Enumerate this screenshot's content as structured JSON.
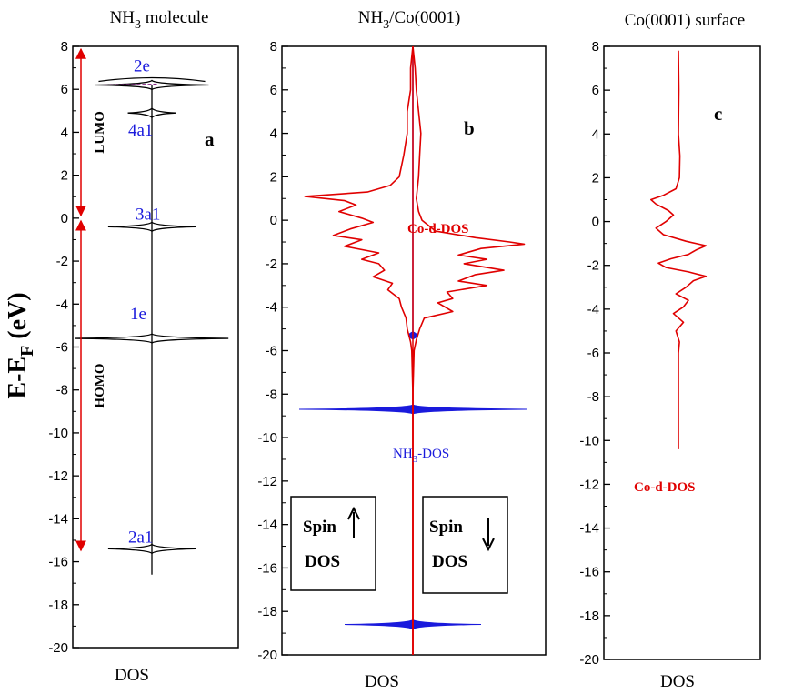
{
  "chart_data": [
    {
      "type": "line",
      "title_main": "NH",
      "title_sub": "3",
      "title_rest": " molecule",
      "panel_label": "a",
      "xlabel": "DOS",
      "ylabel_main": "E-E",
      "ylabel_sub": "F",
      "ylabel_unit": " (eV)",
      "ylim": [
        -20,
        8
      ],
      "yticks": [
        -20,
        -18,
        -16,
        -14,
        -12,
        -10,
        -8,
        -6,
        -4,
        -2,
        0,
        2,
        4,
        6,
        8
      ],
      "grid": false,
      "orbitals": [
        {
          "name": "2e",
          "energy": 6.2,
          "width": 0.7
        },
        {
          "name": "4a1",
          "energy": 4.9,
          "width": 0.2
        },
        {
          "name": "3a1",
          "energy": -0.4,
          "width": 0.5
        },
        {
          "name": "1e",
          "energy": -5.6,
          "width": 1.0
        },
        {
          "name": "2a1",
          "energy": -15.4,
          "width": 0.5
        }
      ],
      "regions": [
        {
          "name": "LUMO",
          "from": 0.0,
          "to": 8.0
        },
        {
          "name": "HOMO",
          "from": -15.6,
          "to": 0.0
        }
      ],
      "colors": {
        "curve": "#000000",
        "orbital_text": "#1a1adc",
        "arrow": "#e00000"
      }
    },
    {
      "type": "line",
      "title_main": "NH",
      "title_sub": "3",
      "title_rest": "/Co(0001)",
      "panel_label": "b",
      "xlabel": "DOS",
      "ylim": [
        -20,
        8
      ],
      "yticks": [
        -20,
        -18,
        -16,
        -14,
        -12,
        -10,
        -8,
        -6,
        -4,
        -2,
        0,
        2,
        4,
        6,
        8
      ],
      "grid": false,
      "series": [
        {
          "name": "Co-d-DOS",
          "color": "#e00000",
          "left_spin_up": [
            [
              8.0,
              0.0
            ],
            [
              7.0,
              0.02
            ],
            [
              6.0,
              0.02
            ],
            [
              5.0,
              0.05
            ],
            [
              4.0,
              0.05
            ],
            [
              3.0,
              0.08
            ],
            [
              2.5,
              0.1
            ],
            [
              2.0,
              0.12
            ],
            [
              1.6,
              0.2
            ],
            [
              1.3,
              0.4
            ],
            [
              1.1,
              0.95
            ],
            [
              0.9,
              0.6
            ],
            [
              0.7,
              0.5
            ],
            [
              0.4,
              0.65
            ],
            [
              0.1,
              0.45
            ],
            [
              -0.1,
              0.35
            ],
            [
              -0.4,
              0.55
            ],
            [
              -0.7,
              0.7
            ],
            [
              -0.9,
              0.45
            ],
            [
              -1.2,
              0.6
            ],
            [
              -1.5,
              0.3
            ],
            [
              -1.8,
              0.45
            ],
            [
              -2.0,
              0.3
            ],
            [
              -2.3,
              0.25
            ],
            [
              -2.6,
              0.35
            ],
            [
              -2.9,
              0.18
            ],
            [
              -3.2,
              0.22
            ],
            [
              -3.6,
              0.12
            ],
            [
              -4.0,
              0.1
            ],
            [
              -4.5,
              0.06
            ],
            [
              -5.0,
              0.05
            ],
            [
              -5.6,
              0.02
            ],
            [
              -6.0,
              0.01
            ],
            [
              -8.0,
              0.0
            ],
            [
              -20.0,
              0.0
            ]
          ],
          "right_spin_down": [
            [
              8.0,
              0.0
            ],
            [
              7.0,
              0.02
            ],
            [
              6.0,
              0.03
            ],
            [
              5.0,
              0.05
            ],
            [
              4.0,
              0.07
            ],
            [
              3.0,
              0.06
            ],
            [
              2.0,
              0.05
            ],
            [
              1.0,
              0.03
            ],
            [
              0.4,
              0.05
            ],
            [
              0.0,
              0.08
            ],
            [
              -0.5,
              0.2
            ],
            [
              -0.8,
              0.55
            ],
            [
              -1.0,
              0.85
            ],
            [
              -1.1,
              0.98
            ],
            [
              -1.3,
              0.6
            ],
            [
              -1.6,
              0.4
            ],
            [
              -1.8,
              0.65
            ],
            [
              -2.0,
              0.45
            ],
            [
              -2.3,
              0.8
            ],
            [
              -2.5,
              0.55
            ],
            [
              -2.8,
              0.4
            ],
            [
              -3.0,
              0.65
            ],
            [
              -3.3,
              0.3
            ],
            [
              -3.6,
              0.35
            ],
            [
              -3.8,
              0.22
            ],
            [
              -4.2,
              0.35
            ],
            [
              -4.5,
              0.1
            ],
            [
              -5.0,
              0.06
            ],
            [
              -5.5,
              0.03
            ],
            [
              -6.0,
              0.01
            ],
            [
              -8.0,
              0.0
            ],
            [
              -20.0,
              0.0
            ]
          ]
        },
        {
          "name": "NH3-DOS",
          "color": "#1a1adc",
          "peaks": [
            {
              "energy": -8.7,
              "width": 1.0
            },
            {
              "energy": -18.6,
              "width": 0.6
            },
            {
              "energy": -5.3,
              "width": 0.03
            }
          ]
        }
      ],
      "annotations": {
        "co_label": "Co-d-DOS",
        "nh3_main": "NH",
        "nh3_sub": "3",
        "nh3_rest": "-DOS",
        "spin_up_word": "Spin",
        "spin_up_dos": "DOS",
        "spin_down_word": "Spin",
        "spin_down_dos": "DOS"
      }
    },
    {
      "type": "line",
      "title": "Co(0001) surface",
      "panel_label": "c",
      "xlabel": "DOS",
      "ylim": [
        -20,
        8
      ],
      "yticks": [
        -20,
        -18,
        -16,
        -14,
        -12,
        -10,
        -8,
        -6,
        -4,
        -2,
        0,
        2,
        4,
        6,
        8
      ],
      "grid": false,
      "series": [
        {
          "name": "Co-d-DOS",
          "color": "#e00000",
          "points": [
            [
              7.8,
              0.0
            ],
            [
              6.0,
              0.01
            ],
            [
              4.0,
              0.0
            ],
            [
              3.0,
              0.03
            ],
            [
              2.0,
              0.02
            ],
            [
              1.5,
              -0.05
            ],
            [
              1.2,
              -0.3
            ],
            [
              1.0,
              -0.55
            ],
            [
              0.8,
              -0.45
            ],
            [
              0.5,
              -0.2
            ],
            [
              0.3,
              -0.1
            ],
            [
              0.0,
              -0.25
            ],
            [
              -0.3,
              -0.45
            ],
            [
              -0.6,
              -0.3
            ],
            [
              -0.9,
              0.15
            ],
            [
              -1.1,
              0.55
            ],
            [
              -1.3,
              0.35
            ],
            [
              -1.5,
              0.2
            ],
            [
              -1.7,
              -0.15
            ],
            [
              -1.9,
              -0.4
            ],
            [
              -2.1,
              -0.25
            ],
            [
              -2.3,
              0.2
            ],
            [
              -2.5,
              0.55
            ],
            [
              -2.7,
              0.3
            ],
            [
              -3.0,
              0.15
            ],
            [
              -3.3,
              -0.05
            ],
            [
              -3.6,
              0.2
            ],
            [
              -3.9,
              0.1
            ],
            [
              -4.2,
              -0.1
            ],
            [
              -4.6,
              0.1
            ],
            [
              -5.0,
              -0.05
            ],
            [
              -5.5,
              0.02
            ],
            [
              -6.0,
              0.0
            ],
            [
              -10.4,
              0.0
            ]
          ]
        }
      ],
      "annotations": {
        "co_label": "Co-d-DOS"
      }
    }
  ]
}
